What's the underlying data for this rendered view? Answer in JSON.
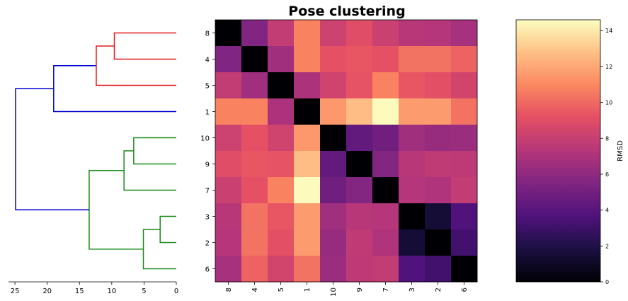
{
  "chart_data": [
    {
      "type": "dendrogram",
      "xlim": [
        26,
        0
      ],
      "x_ticks": [
        25,
        20,
        15,
        10,
        5,
        0
      ],
      "leaf_order": [
        "8",
        "4",
        "5",
        "1",
        "10",
        "9",
        "7",
        "3",
        "2",
        "6"
      ],
      "merges": [
        {
          "left": "8",
          "right": "4",
          "height": 9.6,
          "color": "#e41a1c"
        },
        {
          "left": "8+4",
          "right": "5",
          "height": 12.4,
          "color": "#e41a1c"
        },
        {
          "left": "8+4+5",
          "right": "1",
          "height": 19.0,
          "color": "#0000cc"
        },
        {
          "left": "10",
          "right": "9",
          "height": 6.6,
          "color": "#1a8a1a"
        },
        {
          "left": "10+9",
          "right": "7",
          "height": 8.1,
          "color": "#1a8a1a"
        },
        {
          "left": "3",
          "right": "2",
          "height": 2.5,
          "color": "#1a8a1a"
        },
        {
          "left": "3+2",
          "right": "6",
          "height": 5.1,
          "color": "#1a8a1a"
        },
        {
          "left": "10+9+7",
          "right": "3+2+6",
          "height": 13.5,
          "color": "#1a8a1a"
        },
        {
          "left": "8+4+5+1",
          "right": "10+9+7+3+2+6",
          "height": 24.9,
          "color": "#0000cc"
        }
      ]
    },
    {
      "type": "heatmap",
      "title": "Pose clustering",
      "rows": [
        "8",
        "4",
        "5",
        "1",
        "10",
        "9",
        "7",
        "3",
        "2",
        "6"
      ],
      "cols": [
        "8",
        "4",
        "5",
        "1",
        "10",
        "9",
        "7",
        "3",
        "2",
        "6"
      ],
      "values": [
        [
          0,
          5.5,
          7.8,
          10.8,
          8.2,
          9.0,
          8.1,
          7.4,
          7.3,
          6.8
        ],
        [
          5.5,
          0,
          6.6,
          10.8,
          9.2,
          9.4,
          9.2,
          10.3,
          10.3,
          9.8
        ],
        [
          7.8,
          6.6,
          0,
          7.0,
          8.3,
          9.3,
          10.8,
          9.4,
          9.1,
          8.4
        ],
        [
          10.8,
          10.8,
          7.0,
          0,
          11.5,
          12.7,
          14.5,
          11.6,
          11.6,
          10.3
        ],
        [
          8.2,
          9.2,
          8.3,
          11.5,
          0,
          4.4,
          4.9,
          6.6,
          6.3,
          6.4
        ],
        [
          9.0,
          9.4,
          9.3,
          12.7,
          4.4,
          0,
          5.6,
          7.4,
          7.7,
          7.6
        ],
        [
          8.1,
          9.2,
          10.8,
          14.5,
          4.9,
          5.6,
          0,
          7.3,
          7.1,
          7.8
        ],
        [
          7.4,
          10.3,
          9.4,
          11.6,
          6.6,
          7.4,
          7.3,
          0,
          1.5,
          3.7
        ],
        [
          7.3,
          10.3,
          9.1,
          11.6,
          6.3,
          7.7,
          7.1,
          1.5,
          0,
          3.2
        ],
        [
          6.8,
          9.8,
          8.4,
          10.3,
          6.4,
          7.6,
          7.8,
          3.7,
          3.2,
          0
        ]
      ],
      "colormap": "magma",
      "vmin": 0,
      "vmax": 14.6
    },
    {
      "type": "colorbar",
      "label": "RMSD",
      "ticks": [
        0,
        2,
        4,
        6,
        8,
        10,
        12,
        14
      ],
      "range": [
        0,
        14.6
      ],
      "colormap": "magma"
    }
  ]
}
